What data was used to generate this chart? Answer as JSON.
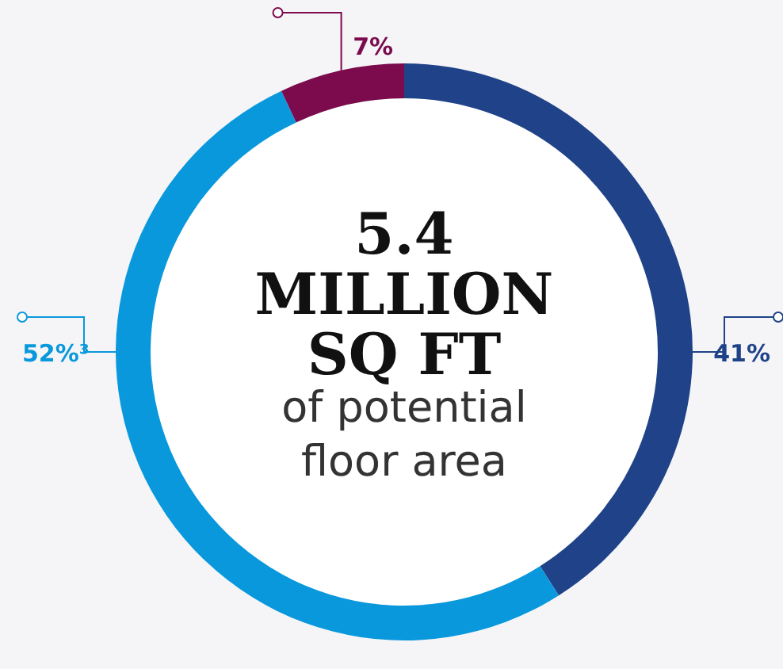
{
  "chart_data": {
    "type": "donut",
    "title": "5.4 MILLION SQ FT",
    "subtitle": "of potential floor area",
    "categories": [
      null,
      null,
      null
    ],
    "values": [
      41,
      52,
      7
    ],
    "colors": [
      "#1f4288",
      "#0a98dc",
      "#7b0b4c"
    ],
    "value_labels": [
      "41%",
      "52%³",
      "7%"
    ]
  }
}
